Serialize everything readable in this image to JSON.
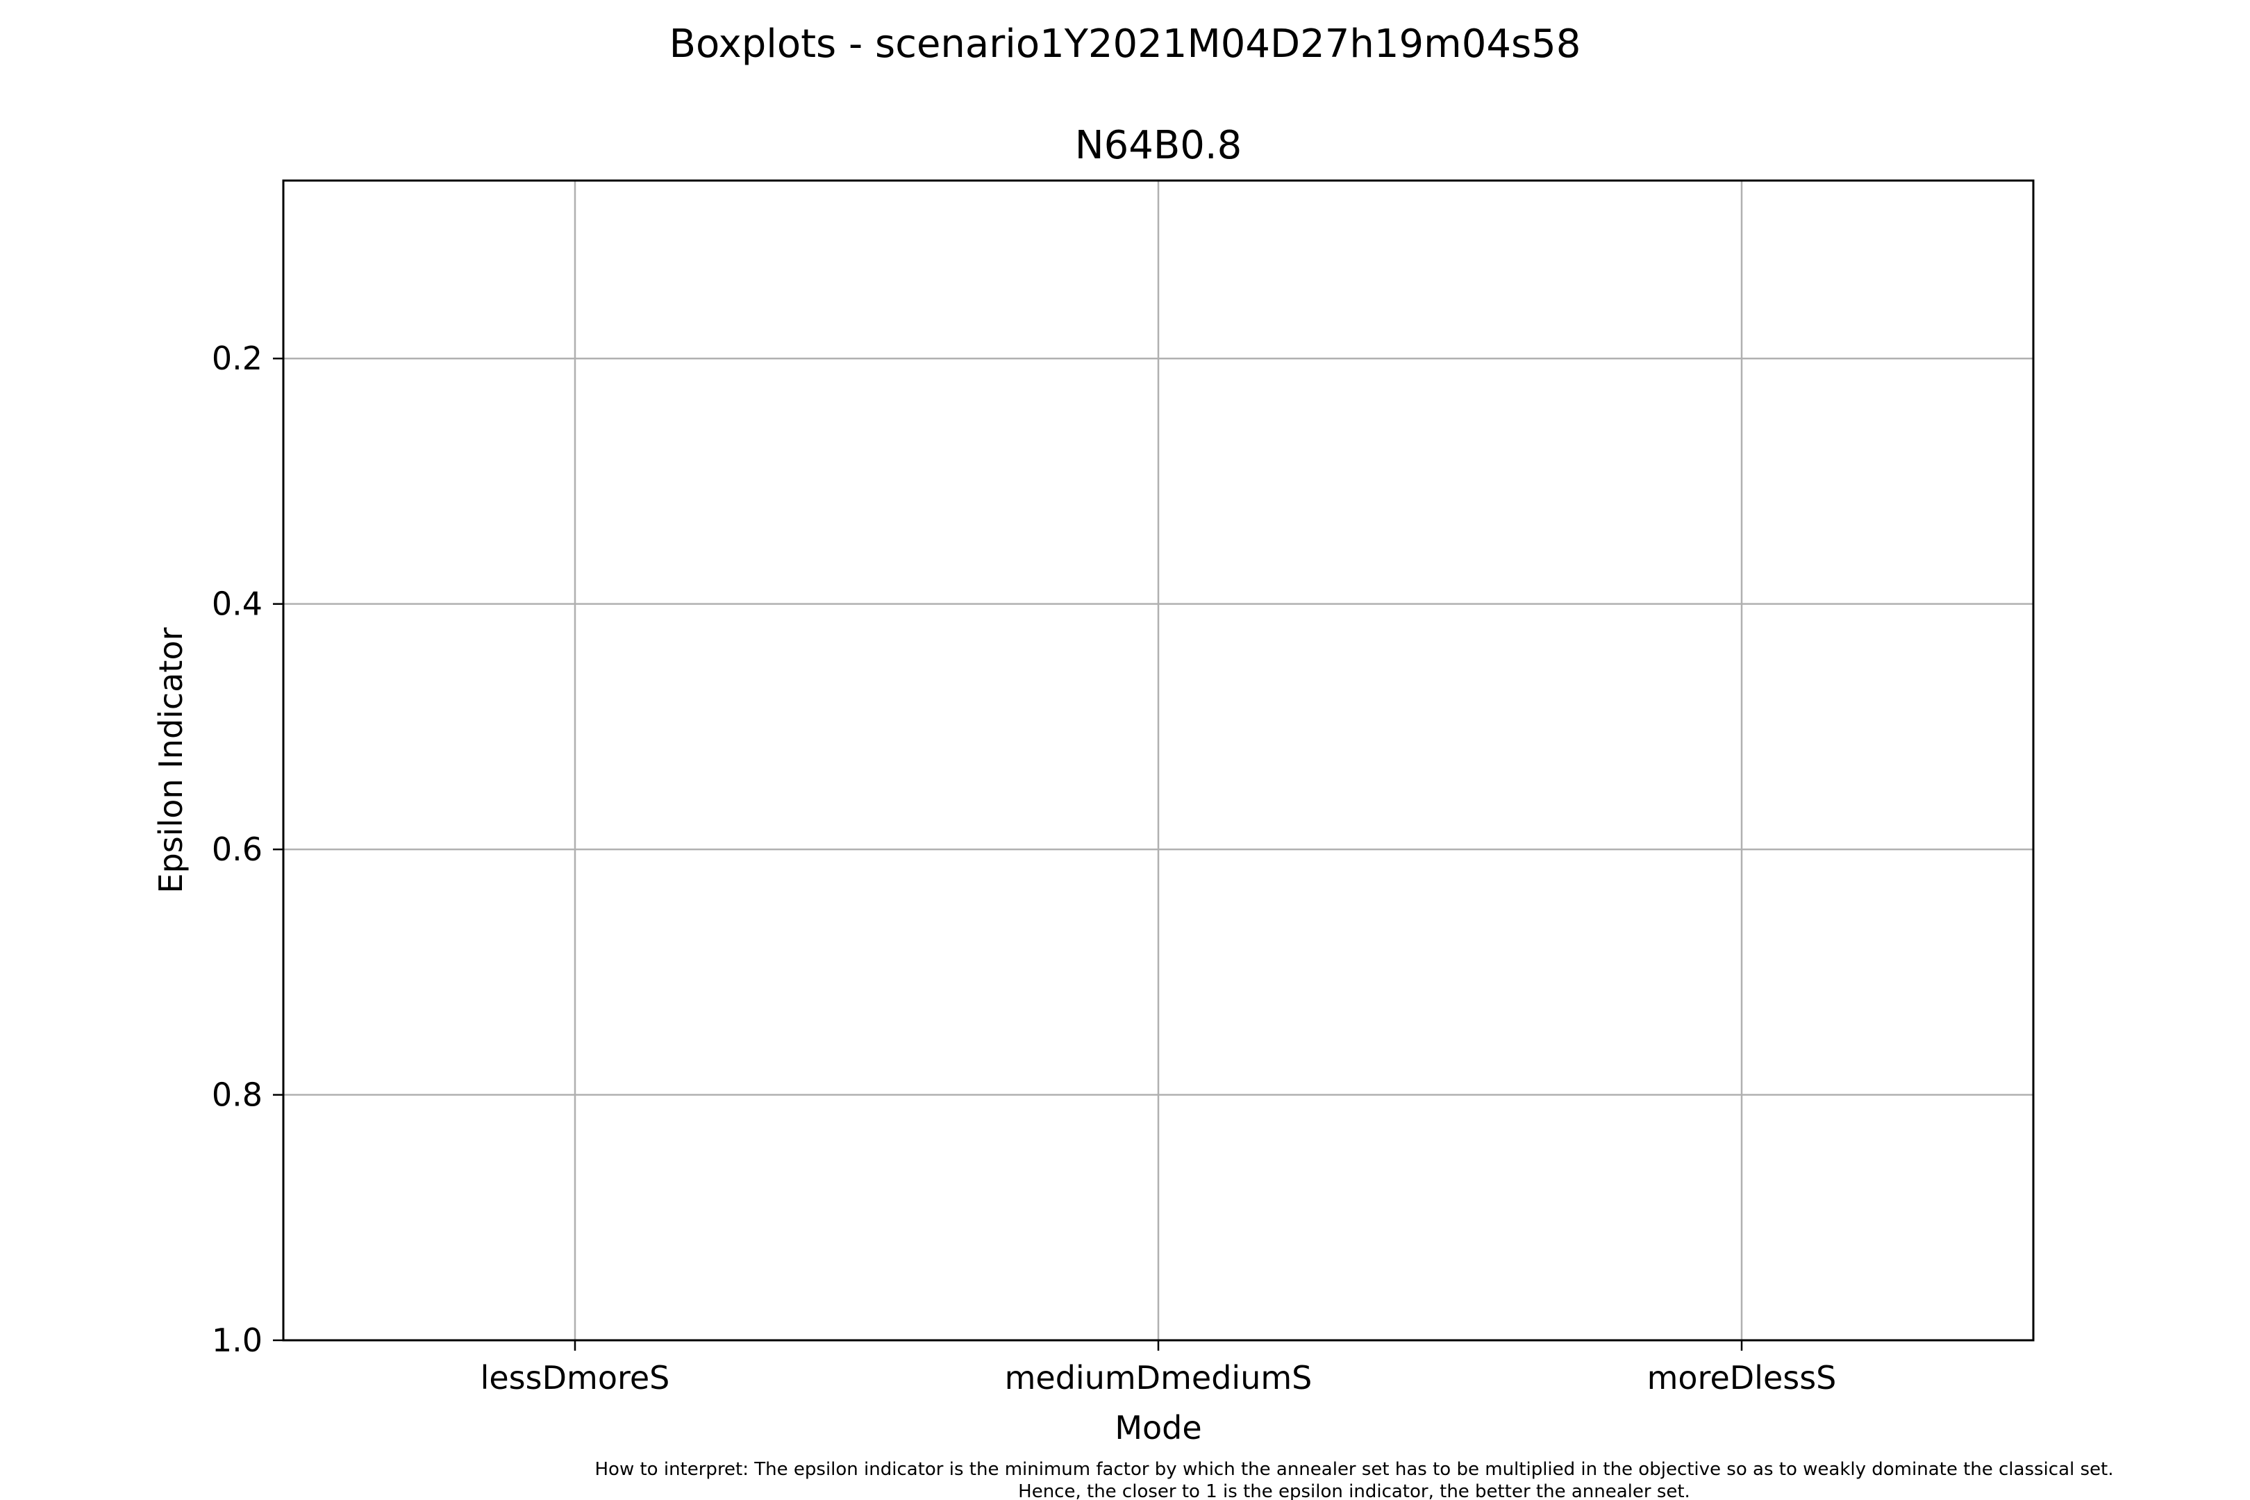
{
  "figure": {
    "suptitle": "Boxplots - scenario1Y2021M04D27h19m04s58",
    "footnote_lines": [
      "How to interpret: The epsilon indicator is the minimum factor by which the annealer set has to be multiplied in the objective so as to weakly dominate the classical set.",
      "Hence, the closer to 1 is the epsilon indicator, the better the annealer set."
    ]
  },
  "chart_data": {
    "type": "boxplot",
    "title": "N64B0.8",
    "xlabel": "Mode",
    "ylabel": "Epsilon Indicator",
    "categories": [
      "lessDmoreS",
      "mediumDmediumS",
      "moreDlessS"
    ],
    "series": [],
    "ylim": [
      1.0,
      0.055
    ],
    "y_inverted": true,
    "yticks": [
      0.2,
      0.4,
      0.6,
      0.8,
      1.0
    ],
    "ytick_labels": [
      "0.2",
      "0.4",
      "0.6",
      "0.8",
      "1.0"
    ],
    "grid": true,
    "legend": "none"
  }
}
